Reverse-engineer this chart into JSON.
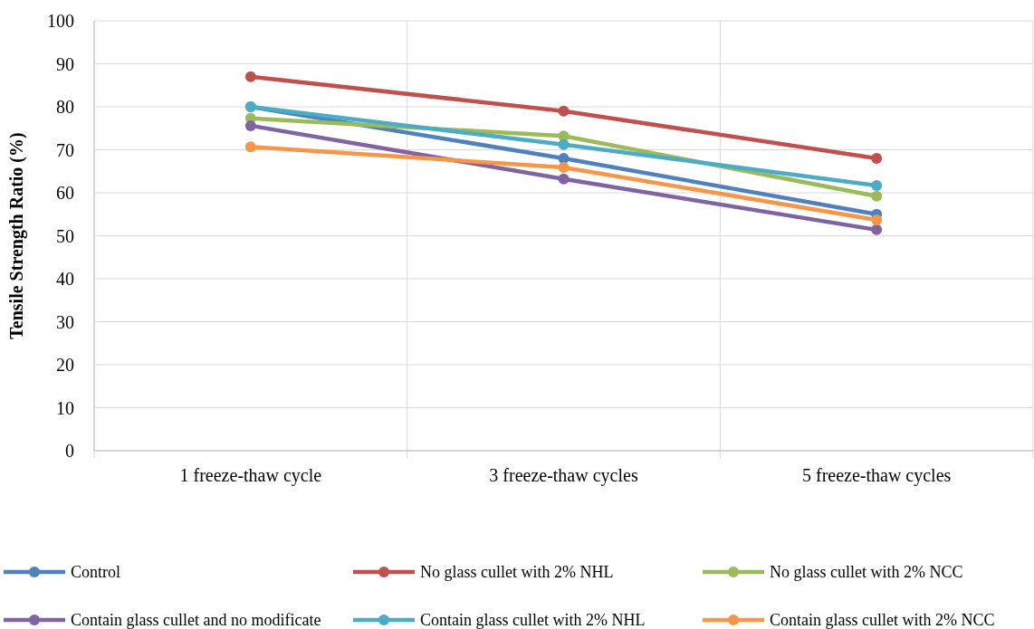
{
  "chart_data": {
    "type": "line",
    "ylabel": "Tensile Strength Ratio (%)",
    "categories": [
      "1 freeze-thaw cycle",
      "3 freeze-thaw cycles",
      "5 freeze-thaw cycles"
    ],
    "series": [
      {
        "name": "Control",
        "color": "#4f81bd",
        "values": [
          80.0,
          68.0,
          55.0
        ]
      },
      {
        "name": "No glass cullet with 2% NHL",
        "color": "#c0504d",
        "values": [
          87.0,
          79.0,
          68.0
        ]
      },
      {
        "name": "No glass cullet with 2% NCC",
        "color": "#9bbb59",
        "values": [
          77.3,
          73.2,
          59.2
        ]
      },
      {
        "name": "Contain glass cullet and no modificate",
        "color": "#8064a2",
        "values": [
          75.6,
          63.2,
          51.4
        ]
      },
      {
        "name": "Contain glass cullet with 2% NHL",
        "color": "#4bacc6",
        "values": [
          80.0,
          71.2,
          61.7
        ]
      },
      {
        "name": "Contain glass cullet with 2% NCC",
        "color": "#f79646",
        "values": [
          70.7,
          65.9,
          53.7
        ]
      }
    ],
    "ylim": [
      0,
      100
    ],
    "yticks": [
      0,
      10,
      20,
      30,
      40,
      50,
      60,
      70,
      80,
      90,
      100
    ],
    "grid": true,
    "legend": "bottom",
    "marker": "circle",
    "line_style": "solid"
  }
}
